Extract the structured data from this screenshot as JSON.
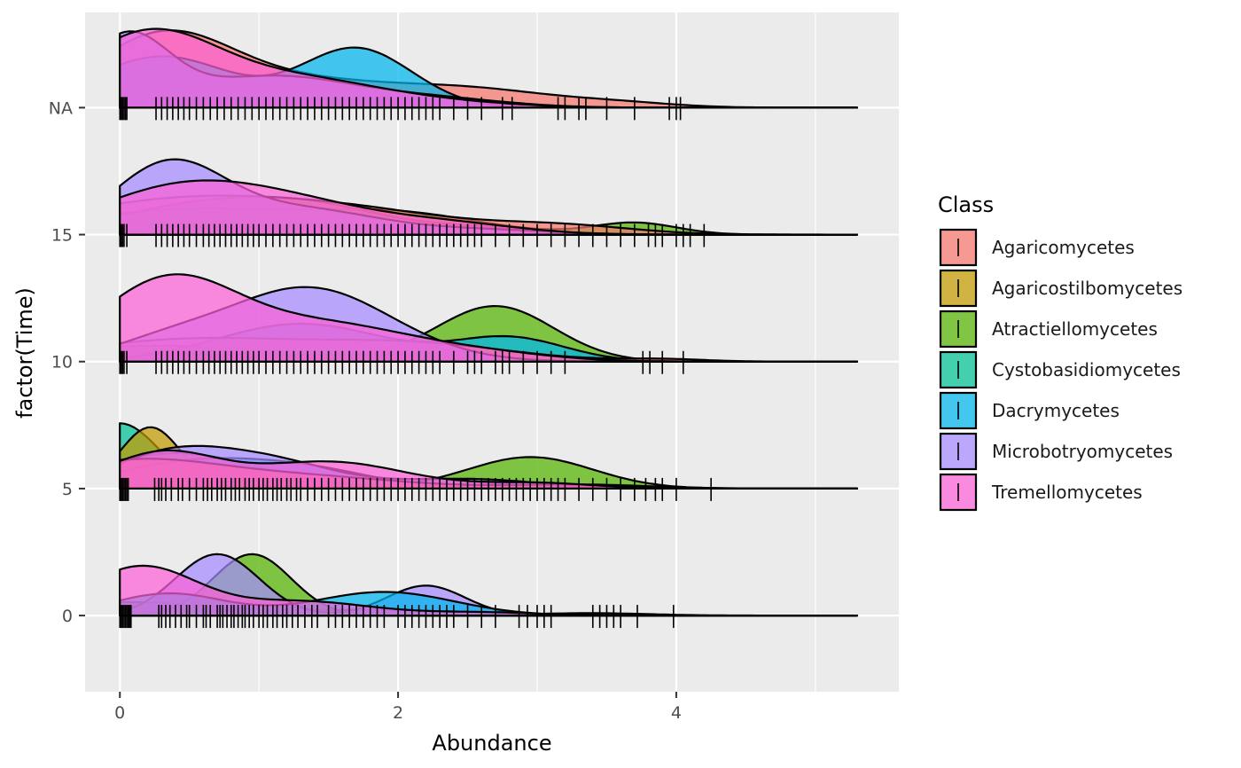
{
  "chart_data": {
    "type": "ridgeline-density",
    "xlabel": "Abundance",
    "ylabel": "factor(Time)",
    "xlim": [
      -0.25,
      5.6
    ],
    "x_ticks": [
      0,
      2,
      4
    ],
    "x_tick_labels": [
      "0",
      "2",
      "4"
    ],
    "y_categories": [
      "0",
      "5",
      "10",
      "15",
      "NA"
    ],
    "ridge_height_units": 0.62,
    "grid": true,
    "legend": {
      "title": "Class",
      "placement": "right",
      "entries": [
        {
          "name": "Agaricomycetes",
          "color": "#F8766D"
        },
        {
          "name": "Agaricostilbomycetes",
          "color": "#C49A00"
        },
        {
          "name": "Atractiellomycetes",
          "color": "#53B400"
        },
        {
          "name": "Cystobasidiomycetes",
          "color": "#00C094"
        },
        {
          "name": "Dacrymycetes",
          "color": "#00B6EB"
        },
        {
          "name": "Microbotryomycetes",
          "color": "#A58AFF"
        },
        {
          "name": "Tremellomycetes",
          "color": "#FB61D7"
        }
      ]
    },
    "series": [
      {
        "group": "0",
        "class": "Agaricomycetes",
        "peaks": [
          [
            0.1,
            0.6,
            0.17
          ],
          [
            1.8,
            0.5,
            0.07
          ],
          [
            3.4,
            0.4,
            0.03
          ]
        ]
      },
      {
        "group": "0",
        "class": "Atractiellomycetes",
        "peaks": [
          [
            0.95,
            0.28,
            0.78
          ]
        ]
      },
      {
        "group": "0",
        "class": "Microbotryomycetes",
        "peaks": [
          [
            0.7,
            0.3,
            0.78
          ],
          [
            2.2,
            0.28,
            0.38
          ]
        ]
      },
      {
        "group": "0",
        "class": "Dacrymycetes",
        "peaks": [
          [
            0.35,
            0.4,
            0.28
          ],
          [
            1.9,
            0.5,
            0.3
          ]
        ]
      },
      {
        "group": "0",
        "class": "Tremellomycetes",
        "peaks": [
          [
            0.15,
            0.4,
            0.62
          ],
          [
            1.3,
            0.5,
            0.18
          ],
          [
            2.6,
            0.4,
            0.04
          ]
        ]
      },
      {
        "group": "5",
        "class": "Cystobasidiomycetes",
        "peaks": [
          [
            0,
            0.28,
            0.83
          ]
        ]
      },
      {
        "group": "5",
        "class": "Agaricostilbomycetes",
        "peaks": [
          [
            0.22,
            0.22,
            0.78
          ]
        ]
      },
      {
        "group": "5",
        "class": "Atractiellomycetes",
        "peaks": [
          [
            0.4,
            0.6,
            0.45
          ],
          [
            2.95,
            0.45,
            0.4
          ]
        ]
      },
      {
        "group": "5",
        "class": "Dacrymycetes",
        "peaks": [
          [
            0.45,
            0.5,
            0.3
          ],
          [
            1.3,
            0.5,
            0.25
          ],
          [
            3.5,
            0.3,
            0.04
          ]
        ]
      },
      {
        "group": "5",
        "class": "Microbotryomycetes",
        "peaks": [
          [
            0.3,
            0.4,
            0.35
          ],
          [
            1.0,
            0.5,
            0.38
          ],
          [
            2.5,
            0.5,
            0.12
          ]
        ]
      },
      {
        "group": "5",
        "class": "Agaricomycetes",
        "peaks": [
          [
            0.1,
            0.6,
            0.34
          ],
          [
            1.3,
            0.7,
            0.15
          ],
          [
            3.3,
            0.5,
            0.05
          ]
        ]
      },
      {
        "group": "5",
        "class": "Tremellomycetes",
        "peaks": [
          [
            0.3,
            0.4,
            0.45
          ],
          [
            1.5,
            0.55,
            0.34
          ],
          [
            3.0,
            0.4,
            0.07
          ]
        ]
      },
      {
        "group": "10",
        "class": "Atractiellomycetes",
        "peaks": [
          [
            0.3,
            0.9,
            0.2
          ],
          [
            2.7,
            0.42,
            0.7
          ]
        ]
      },
      {
        "group": "10",
        "class": "Dacrymycetes",
        "peaks": [
          [
            1.3,
            0.6,
            0.48
          ],
          [
            2.8,
            0.4,
            0.3
          ]
        ]
      },
      {
        "group": "10",
        "class": "Agaricomycetes",
        "peaks": [
          [
            0.5,
            0.8,
            0.28
          ],
          [
            2.1,
            0.7,
            0.22
          ],
          [
            3.9,
            0.3,
            0.03
          ]
        ]
      },
      {
        "group": "10",
        "class": "Microbotryomycetes",
        "peaks": [
          [
            1.35,
            0.6,
            0.94
          ],
          [
            0.3,
            0.4,
            0.2
          ]
        ]
      },
      {
        "group": "10",
        "class": "Tremellomycetes",
        "peaks": [
          [
            0.35,
            0.5,
            1.03
          ],
          [
            1.5,
            0.6,
            0.45
          ],
          [
            2.6,
            0.5,
            0.1
          ]
        ]
      },
      {
        "group": "15",
        "class": "Atractiellomycetes",
        "peaks": [
          [
            0.5,
            0.8,
            0.32
          ],
          [
            2.0,
            0.6,
            0.25
          ],
          [
            3.7,
            0.3,
            0.15
          ]
        ]
      },
      {
        "group": "15",
        "class": "Cystobasidiomycetes",
        "peaks": [
          [
            0.5,
            0.6,
            0.33
          ],
          [
            1.4,
            0.55,
            0.32
          ],
          [
            2.6,
            0.4,
            0.08
          ]
        ]
      },
      {
        "group": "15",
        "class": "Agaricomycetes",
        "peaks": [
          [
            0.3,
            0.8,
            0.38
          ],
          [
            1.6,
            0.8,
            0.3
          ],
          [
            3.2,
            0.5,
            0.1
          ]
        ]
      },
      {
        "group": "15",
        "class": "Microbotryomycetes",
        "peaks": [
          [
            0.35,
            0.4,
            0.88
          ],
          [
            1.3,
            0.55,
            0.32
          ],
          [
            2.6,
            0.5,
            0.06
          ]
        ]
      },
      {
        "group": "15",
        "class": "Tremellomycetes",
        "peaks": [
          [
            0.4,
            0.6,
            0.55
          ],
          [
            1.3,
            0.6,
            0.33
          ],
          [
            2.4,
            0.5,
            0.12
          ]
        ]
      },
      {
        "group": "NA",
        "class": "Agaricomycetes",
        "peaks": [
          [
            0.3,
            0.5,
            0.9
          ],
          [
            1.3,
            0.6,
            0.3
          ],
          [
            2.5,
            0.6,
            0.23
          ],
          [
            3.6,
            0.4,
            0.05
          ]
        ]
      },
      {
        "group": "NA",
        "class": "Dacrymycetes",
        "peaks": [
          [
            0.3,
            0.5,
            0.65
          ],
          [
            1.7,
            0.4,
            0.75
          ]
        ]
      },
      {
        "group": "NA",
        "class": "Microbotryomycetes",
        "peaks": [
          [
            0.05,
            0.3,
            0.88
          ],
          [
            1.1,
            0.6,
            0.4
          ],
          [
            2.3,
            0.5,
            0.1
          ]
        ]
      },
      {
        "group": "NA",
        "class": "Tremellomycetes",
        "peaks": [
          [
            0.2,
            0.5,
            0.93
          ],
          [
            1.3,
            0.6,
            0.35
          ],
          [
            2.4,
            0.5,
            0.05
          ]
        ]
      }
    ],
    "rug": {
      "0": [
        0,
        0.01,
        0.02,
        0.03,
        0.04,
        0.05,
        0.06,
        0.07,
        0.08,
        0.28,
        0.3,
        0.33,
        0.36,
        0.4,
        0.44,
        0.48,
        0.5,
        0.55,
        0.6,
        0.62,
        0.65,
        0.7,
        0.72,
        0.74,
        0.77,
        0.8,
        0.82,
        0.85,
        0.88,
        0.9,
        0.93,
        0.96,
        1.0,
        1.03,
        1.06,
        1.1,
        1.13,
        1.17,
        1.2,
        1.24,
        1.28,
        1.33,
        1.38,
        1.42,
        1.5,
        1.55,
        1.6,
        1.65,
        1.7,
        1.75,
        1.8,
        1.85,
        1.9,
        2.0,
        2.05,
        2.1,
        2.15,
        2.2,
        2.25,
        2.3,
        2.35,
        2.4,
        2.5,
        2.6,
        2.7,
        2.87,
        2.93,
        3.0,
        3.05,
        3.1,
        3.4,
        3.45,
        3.5,
        3.55,
        3.6,
        3.72,
        3.98
      ],
      "5": [
        0,
        0.01,
        0.02,
        0.03,
        0.04,
        0.05,
        0.06,
        0.25,
        0.28,
        0.3,
        0.33,
        0.37,
        0.42,
        0.45,
        0.5,
        0.55,
        0.6,
        0.63,
        0.66,
        0.7,
        0.73,
        0.76,
        0.8,
        0.83,
        0.86,
        0.9,
        0.93,
        0.96,
        1.0,
        1.03,
        1.06,
        1.1,
        1.13,
        1.16,
        1.2,
        1.23,
        1.27,
        1.3,
        1.35,
        1.4,
        1.45,
        1.5,
        1.55,
        1.6,
        1.65,
        1.7,
        1.75,
        1.8,
        1.85,
        1.9,
        1.95,
        2.0,
        2.05,
        2.1,
        2.15,
        2.2,
        2.25,
        2.3,
        2.35,
        2.4,
        2.45,
        2.5,
        2.55,
        2.6,
        2.65,
        2.7,
        2.75,
        2.8,
        2.85,
        2.9,
        2.95,
        3.0,
        3.05,
        3.1,
        3.15,
        3.2,
        3.3,
        3.4,
        3.5,
        3.6,
        3.7,
        3.78,
        3.85,
        3.9,
        4.0,
        4.25
      ],
      "10": [
        0,
        0.01,
        0.02,
        0.03,
        0.05,
        0.26,
        0.3,
        0.34,
        0.38,
        0.42,
        0.46,
        0.5,
        0.55,
        0.6,
        0.64,
        0.68,
        0.72,
        0.76,
        0.8,
        0.84,
        0.88,
        0.92,
        0.96,
        1.0,
        1.05,
        1.1,
        1.15,
        1.2,
        1.25,
        1.3,
        1.35,
        1.4,
        1.45,
        1.5,
        1.55,
        1.6,
        1.65,
        1.7,
        1.75,
        1.8,
        1.85,
        1.9,
        1.95,
        2.0,
        2.05,
        2.1,
        2.15,
        2.2,
        2.25,
        2.3,
        2.4,
        2.5,
        2.55,
        2.6,
        2.7,
        2.75,
        2.8,
        2.9,
        3.0,
        3.1,
        3.2,
        3.76,
        3.81,
        3.9,
        4.05
      ],
      "15": [
        0,
        0.01,
        0.02,
        0.03,
        0.05,
        0.26,
        0.3,
        0.34,
        0.38,
        0.42,
        0.46,
        0.5,
        0.55,
        0.6,
        0.64,
        0.68,
        0.72,
        0.76,
        0.8,
        0.84,
        0.88,
        0.92,
        0.96,
        1.0,
        1.05,
        1.1,
        1.15,
        1.2,
        1.25,
        1.3,
        1.35,
        1.4,
        1.45,
        1.5,
        1.55,
        1.6,
        1.65,
        1.7,
        1.75,
        1.8,
        1.85,
        1.9,
        1.95,
        2.0,
        2.05,
        2.1,
        2.15,
        2.2,
        2.25,
        2.3,
        2.35,
        2.4,
        2.45,
        2.5,
        2.55,
        2.6,
        2.7,
        2.8,
        2.9,
        3.0,
        3.1,
        3.2,
        3.3,
        3.4,
        3.5,
        3.6,
        3.7,
        3.8,
        3.85,
        3.9,
        4.0,
        4.05,
        4.1,
        4.2
      ],
      "NA": [
        0,
        0.01,
        0.02,
        0.03,
        0.04,
        0.05,
        0.26,
        0.3,
        0.34,
        0.38,
        0.42,
        0.46,
        0.5,
        0.55,
        0.6,
        0.65,
        0.7,
        0.75,
        0.8,
        0.85,
        0.9,
        0.95,
        1.0,
        1.05,
        1.1,
        1.15,
        1.2,
        1.25,
        1.3,
        1.35,
        1.4,
        1.45,
        1.5,
        1.55,
        1.6,
        1.65,
        1.7,
        1.75,
        1.8,
        1.85,
        1.9,
        1.95,
        2.0,
        2.05,
        2.1,
        2.15,
        2.2,
        2.25,
        2.3,
        2.4,
        2.5,
        2.6,
        2.75,
        2.82,
        3.15,
        3.2,
        3.3,
        3.35,
        3.5,
        3.7,
        3.95,
        4.0,
        4.03
      ]
    }
  }
}
